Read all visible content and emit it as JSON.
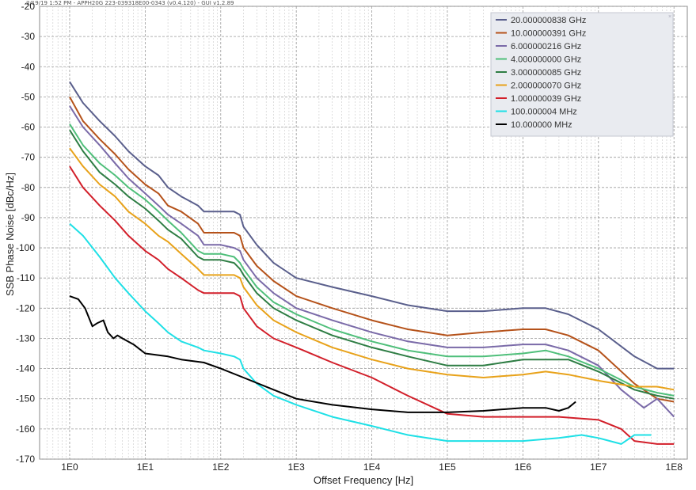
{
  "header": {
    "text": "2/19/19 1:52 PM - APPH20G 223-039318E00-0343 (v0.4.120) - GUI v1.2.89"
  },
  "chart_data": {
    "type": "line",
    "xlabel": "Offset Frequency [Hz]",
    "ylabel": "SSB Phase Noise [dBc/Hz]",
    "xscale": "log",
    "xlim": [
      0.4,
      150000000
    ],
    "ylim": [
      -170,
      -20
    ],
    "y_ticks": [
      -20,
      -30,
      -40,
      -50,
      -60,
      -70,
      -80,
      -90,
      -100,
      -110,
      -120,
      -130,
      -140,
      -150,
      -160,
      -170
    ],
    "y_tick_labels": [
      "-20",
      "-30",
      "-40",
      "-50",
      "-60",
      "-70",
      "-80",
      "-90",
      "-100",
      "-110",
      "-120",
      "-130",
      "-140",
      "-150",
      "-160",
      "-170"
    ],
    "x_ticks": [
      1,
      10,
      100,
      1000,
      10000,
      100000,
      1000000,
      10000000,
      100000000
    ],
    "x_tick_labels": [
      "1E0",
      "1E1",
      "1E2",
      "1E3",
      "1E4",
      "1E5",
      "1E6",
      "1E7",
      "1E8"
    ],
    "grid": true,
    "legend_position": "top-right",
    "series": [
      {
        "name": "20.000000838 GHz",
        "color": "#5a5f8c",
        "x": [
          1,
          1.5,
          2.5,
          4,
          6,
          10,
          15,
          20,
          30,
          50,
          60,
          100,
          150,
          180,
          200,
          300,
          500,
          1000,
          3000,
          10000,
          30000,
          100000,
          300000,
          1000000,
          2000000,
          4000000,
          10000000,
          30000000,
          60000000,
          100000000
        ],
        "y": [
          -45,
          -52,
          -58,
          -63,
          -68,
          -73,
          -76,
          -80,
          -83,
          -86,
          -88,
          -88,
          -88,
          -89,
          -93,
          -99,
          -105,
          -110,
          -113,
          -116,
          -119,
          -121,
          -121,
          -120,
          -120,
          -122,
          -127,
          -136,
          -140,
          -140
        ]
      },
      {
        "name": "10.000000391 GHz",
        "color": "#b5521a",
        "x": [
          1,
          1.5,
          2.5,
          4,
          6,
          10,
          15,
          20,
          30,
          50,
          60,
          100,
          150,
          180,
          200,
          300,
          500,
          1000,
          3000,
          10000,
          30000,
          100000,
          300000,
          1000000,
          2000000,
          4000000,
          10000000,
          30000000,
          60000000,
          100000000
        ],
        "y": [
          -50,
          -58,
          -64,
          -69,
          -74,
          -79,
          -82,
          -86,
          -88,
          -92,
          -95,
          -95,
          -95,
          -96,
          -100,
          -106,
          -111,
          -116,
          -120,
          -124,
          -127,
          -129,
          -128,
          -127,
          -127,
          -129,
          -134,
          -145,
          -150,
          -151
        ]
      },
      {
        "name": "6.000000216 GHz",
        "color": "#7a6aa8",
        "x": [
          1,
          1.5,
          2.5,
          4,
          6,
          10,
          15,
          20,
          30,
          50,
          60,
          100,
          150,
          180,
          200,
          300,
          500,
          1000,
          3000,
          10000,
          30000,
          100000,
          300000,
          1000000,
          2000000,
          4000000,
          10000000,
          20000000,
          40000000,
          60000000,
          100000000
        ],
        "y": [
          -53,
          -60,
          -66,
          -72,
          -77,
          -82,
          -86,
          -89,
          -92,
          -96,
          -99,
          -99,
          -100,
          -101,
          -104,
          -110,
          -115,
          -120,
          -124,
          -128,
          -131,
          -133,
          -133,
          -132,
          -132,
          -134,
          -139,
          -147,
          -153,
          -150,
          -156
        ]
      },
      {
        "name": "4.000000000 GHz",
        "color": "#4fbf7a",
        "x": [
          1,
          1.5,
          2.5,
          4,
          6,
          10,
          15,
          20,
          30,
          50,
          60,
          100,
          150,
          180,
          200,
          300,
          500,
          1000,
          3000,
          10000,
          30000,
          100000,
          300000,
          1000000,
          2000000,
          4000000,
          10000000,
          30000000,
          60000000,
          100000000
        ],
        "y": [
          -59,
          -66,
          -72,
          -76,
          -80,
          -84,
          -88,
          -91,
          -95,
          -101,
          -102,
          -102,
          -103,
          -105,
          -107,
          -113,
          -118,
          -122,
          -127,
          -131,
          -134,
          -136,
          -136,
          -135,
          -134,
          -136,
          -140,
          -146,
          -148,
          -149
        ]
      },
      {
        "name": "3.000000085 GHz",
        "color": "#2e7d44",
        "x": [
          1,
          1.5,
          2.5,
          4,
          6,
          10,
          15,
          20,
          30,
          50,
          60,
          100,
          150,
          180,
          200,
          300,
          500,
          1000,
          3000,
          10000,
          30000,
          100000,
          300000,
          1000000,
          2000000,
          4000000,
          10000000,
          30000000,
          60000000,
          100000000
        ],
        "y": [
          -61,
          -68,
          -75,
          -79,
          -83,
          -87,
          -91,
          -94,
          -97,
          -103,
          -104,
          -104,
          -105,
          -107,
          -109,
          -115,
          -120,
          -124,
          -129,
          -133,
          -136,
          -139,
          -139,
          -137,
          -137,
          -137,
          -141,
          -147,
          -149,
          -150
        ]
      },
      {
        "name": "2.000000070 GHz",
        "color": "#e8a21a",
        "x": [
          1,
          1.5,
          2.5,
          4,
          6,
          10,
          15,
          20,
          30,
          50,
          60,
          100,
          150,
          180,
          200,
          300,
          500,
          1000,
          3000,
          10000,
          30000,
          100000,
          300000,
          1000000,
          2000000,
          4000000,
          10000000,
          30000000,
          60000000,
          100000000
        ],
        "y": [
          -67,
          -73,
          -79,
          -83,
          -88,
          -92,
          -96,
          -98,
          -102,
          -107,
          -109,
          -109,
          -109,
          -110,
          -113,
          -119,
          -124,
          -128,
          -133,
          -137,
          -140,
          -142,
          -143,
          -142,
          -141,
          -142,
          -144,
          -146,
          -146,
          -147
        ]
      },
      {
        "name": "1.000000039 GHz",
        "color": "#d21f2a",
        "x": [
          1,
          1.5,
          2.5,
          4,
          6,
          10,
          15,
          20,
          30,
          50,
          60,
          100,
          150,
          180,
          200,
          300,
          500,
          1000,
          3000,
          10000,
          30000,
          100000,
          300000,
          1000000,
          3000000,
          10000000,
          20000000,
          30000000,
          60000000,
          100000000
        ],
        "y": [
          -73,
          -80,
          -86,
          -91,
          -96,
          -101,
          -104,
          -107,
          -110,
          -114,
          -115,
          -115,
          -115,
          -116,
          -120,
          -126,
          -130,
          -133,
          -138,
          -143,
          -149,
          -155,
          -156,
          -156,
          -156,
          -157,
          -160,
          -164,
          -165,
          -165
        ]
      },
      {
        "name": "100.000004 MHz",
        "color": "#1ee0e6",
        "x": [
          1,
          1.5,
          2.5,
          4,
          6,
          10,
          15,
          20,
          30,
          50,
          60,
          100,
          150,
          180,
          200,
          300,
          500,
          1000,
          3000,
          10000,
          30000,
          100000,
          300000,
          1000000,
          3000000,
          6000000,
          10000000,
          20000000,
          30000000,
          50000000
        ],
        "y": [
          -92,
          -96,
          -103,
          -110,
          -115,
          -121,
          -125,
          -128,
          -131,
          -133,
          -134,
          -135,
          -136,
          -137,
          -140,
          -145,
          -149,
          -152,
          -156,
          -159,
          -162,
          -164,
          -164,
          -164,
          -163,
          -162,
          -163,
          -165,
          -162,
          -162
        ]
      },
      {
        "name": "10.000000 MHz",
        "color": "#000000",
        "x": [
          1,
          1.3,
          1.6,
          2.0,
          2.3,
          2.8,
          3.2,
          3.8,
          4.3,
          5,
          7,
          10,
          20,
          30,
          60,
          100,
          200,
          500,
          1000,
          3000,
          10000,
          30000,
          100000,
          300000,
          1000000,
          2000000,
          3000000,
          4000000,
          5000000
        ],
        "y": [
          -116,
          -117,
          -120,
          -126,
          -125,
          -124,
          -128,
          -130,
          -129,
          -130,
          -132,
          -135,
          -136,
          -137,
          -138,
          -140,
          -143,
          -147,
          -150,
          -152,
          -153.5,
          -154.5,
          -154.5,
          -154,
          -153,
          -153,
          -154,
          -153,
          -151
        ]
      }
    ]
  }
}
